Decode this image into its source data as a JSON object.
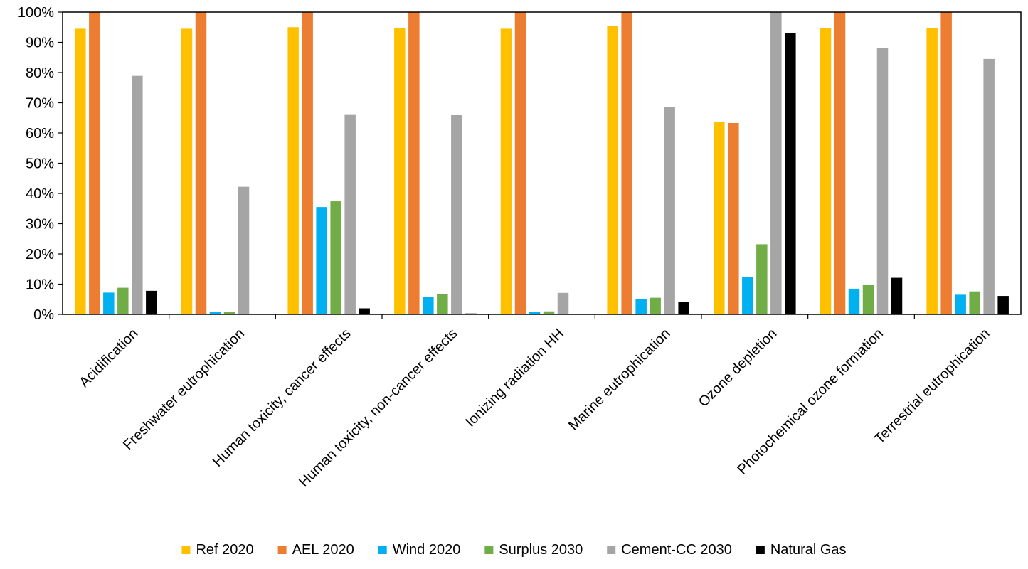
{
  "chart_data": {
    "type": "bar",
    "title": "",
    "xlabel": "",
    "ylabel": "",
    "ylim": [
      0,
      100
    ],
    "yticks": [
      "0%",
      "10%",
      "20%",
      "30%",
      "40%",
      "50%",
      "60%",
      "70%",
      "80%",
      "90%",
      "100%"
    ],
    "grid": false,
    "legend_position": "bottom",
    "categories": [
      "Acidification",
      "Freshwater eutrophication",
      "Human toxicity, cancer effects",
      "Human toxicity, non-cancer effects",
      "Ionizing radiation HH",
      "Marine eutrophication",
      "Ozone depletion",
      "Photochemical ozone formation",
      "Terrestrial eutrophication"
    ],
    "series": [
      {
        "name": "Ref 2020",
        "color": "#FFC000",
        "values": [
          94.5,
          94.5,
          95,
          94.8,
          94.5,
          95.5,
          63.7,
          94.7,
          94.7
        ]
      },
      {
        "name": "AEL 2020",
        "color": "#ED7D31",
        "values": [
          100,
          100,
          100,
          100,
          100,
          100,
          63.3,
          100,
          100
        ]
      },
      {
        "name": "Wind 2020",
        "color": "#00B0F0",
        "values": [
          7.2,
          0.7,
          35.5,
          5.8,
          0.9,
          5.0,
          12.4,
          8.5,
          6.5
        ]
      },
      {
        "name": "Surplus 2030",
        "color": "#70AD47",
        "values": [
          8.8,
          0.9,
          37.4,
          6.8,
          1.0,
          5.5,
          23.2,
          9.8,
          7.6
        ]
      },
      {
        "name": "Cement-CC 2030",
        "color": "#A5A5A5",
        "values": [
          78.9,
          42.2,
          66.2,
          66.0,
          7.1,
          68.6,
          100,
          88.2,
          84.5
        ]
      },
      {
        "name": "Natural Gas",
        "color": "#000000",
        "values": [
          7.8,
          0.0,
          2.0,
          0.3,
          0.0,
          4.1,
          93.1,
          12.1,
          6.1
        ]
      }
    ]
  }
}
